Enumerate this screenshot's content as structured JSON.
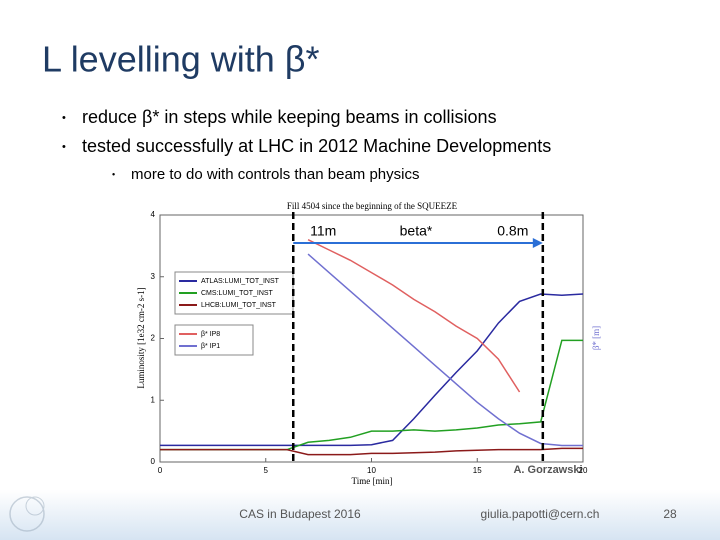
{
  "title": "L levelling with β*",
  "bullets": [
    "reduce β* in steps while keeping beams in collisions",
    "tested successfully at LHC in 2012 Machine Developments"
  ],
  "sub_bullets": [
    "more to do with controls than beam physics"
  ],
  "footer": {
    "event": "CAS in Budapest 2016",
    "email": "giulia.papotti@cern.ch",
    "page": "28"
  },
  "chart_data": {
    "type": "line",
    "title": "Fill 4504 since the beginning of the SQUEEZE",
    "x_label": "Time [min]",
    "y_label": "Luminosity [1e32 cm-2 s-1]",
    "y2_label": "β* [m]",
    "x": [
      0,
      1,
      2,
      3,
      4,
      5,
      6,
      7,
      8,
      9,
      10,
      11,
      12,
      13,
      14,
      15,
      16,
      17,
      18,
      19,
      20
    ],
    "xlim": [
      0,
      20
    ],
    "xticks": [
      0,
      5,
      10,
      15,
      20
    ],
    "ylim": [
      0,
      4
    ],
    "yticks": [
      0,
      1,
      2,
      3,
      4
    ],
    "y2lim": [
      0,
      12
    ],
    "series": [
      {
        "name": "ATLAS:LUMI_TOT_INST",
        "color": "#2a2aa0",
        "values": [
          0.27,
          0.27,
          0.27,
          0.27,
          0.27,
          0.27,
          0.27,
          0.27,
          0.27,
          0.27,
          0.28,
          0.35,
          0.7,
          1.08,
          1.45,
          1.8,
          2.25,
          2.6,
          2.72,
          2.7,
          2.72
        ]
      },
      {
        "name": "CMS:LUMI_TOT_INST",
        "color": "#22a022",
        "values": [
          0.2,
          0.2,
          0.2,
          0.2,
          0.2,
          0.2,
          0.2,
          0.32,
          0.35,
          0.4,
          0.5,
          0.5,
          0.52,
          0.5,
          0.52,
          0.55,
          0.6,
          0.62,
          0.65,
          1.97,
          1.97
        ]
      },
      {
        "name": "LHCB:LUMI_TOT_INST",
        "color": "#8b1a1a",
        "values": [
          0.2,
          0.2,
          0.2,
          0.2,
          0.2,
          0.2,
          0.2,
          0.12,
          0.12,
          0.12,
          0.14,
          0.14,
          0.15,
          0.16,
          0.18,
          0.19,
          0.2,
          0.2,
          0.2,
          0.22,
          0.22
        ]
      },
      {
        "name": "β* IP8",
        "color": "#e06060",
        "axis": "y2",
        "values": [
          null,
          null,
          null,
          null,
          null,
          null,
          null,
          10.8,
          10.3,
          9.8,
          9.2,
          8.6,
          7.9,
          7.3,
          6.6,
          6.0,
          5.0,
          3.4,
          null,
          null,
          null
        ]
      },
      {
        "name": "β* IP1",
        "color": "#7070d0",
        "axis": "y2",
        "values": [
          null,
          null,
          null,
          null,
          null,
          null,
          null,
          10.1,
          9.2,
          8.3,
          7.4,
          6.5,
          5.6,
          4.7,
          3.8,
          2.9,
          2.1,
          1.4,
          0.9,
          0.8,
          0.8
        ]
      }
    ],
    "markers": [
      {
        "x": 6.3,
        "label": "11m"
      },
      {
        "x": 18.1,
        "label": "0.8m"
      }
    ],
    "annotations": [
      "beta*",
      "A. Gorzawski"
    ]
  }
}
